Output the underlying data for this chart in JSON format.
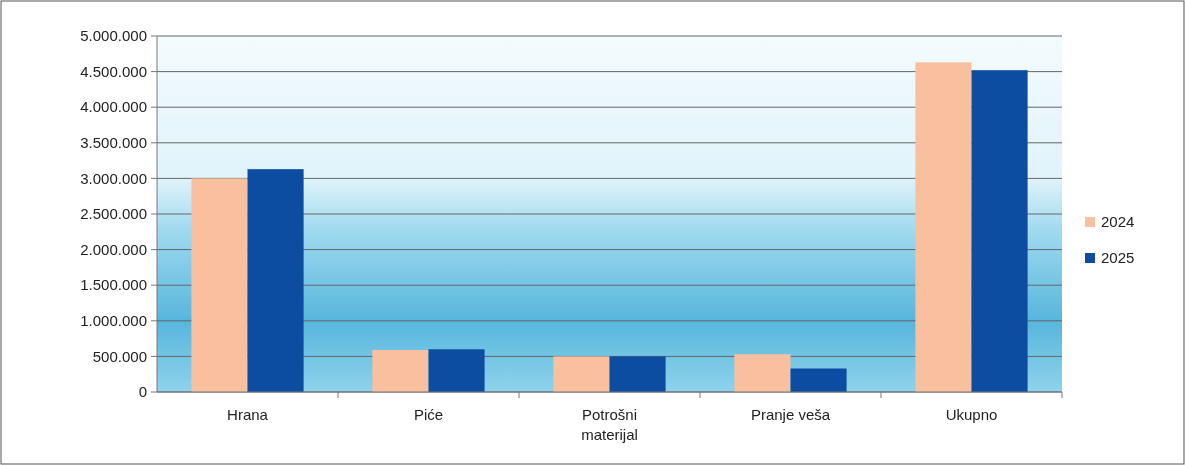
{
  "chart_data": {
    "type": "bar",
    "categories": [
      "Hrana",
      "Piće",
      "Potrošni materijal",
      "Pranje veša",
      "Ukupno"
    ],
    "series": [
      {
        "name": "2024",
        "color": "#f9c0a0",
        "values": [
          3000000,
          590000,
          500000,
          530000,
          4630000
        ]
      },
      {
        "name": "2025",
        "color": "#0c4da2",
        "values": [
          3130000,
          600000,
          500000,
          330000,
          4520000
        ]
      }
    ],
    "ylim": [
      0,
      5000000
    ],
    "yticks": [
      {
        "value": 0,
        "label": "0"
      },
      {
        "value": 500000,
        "label": "500.000"
      },
      {
        "value": 1000000,
        "label": "1.000.000"
      },
      {
        "value": 1500000,
        "label": "1.500.000"
      },
      {
        "value": 2000000,
        "label": "2.000.000"
      },
      {
        "value": 2500000,
        "label": "2.500.000"
      },
      {
        "value": 3000000,
        "label": "3.000.000"
      },
      {
        "value": 3500000,
        "label": "3.500.000"
      },
      {
        "value": 4000000,
        "label": "4.000.000"
      },
      {
        "value": 4500000,
        "label": "4.500.000"
      },
      {
        "value": 5000000,
        "label": "5.000.000"
      }
    ],
    "grid": "y",
    "legend": "right"
  }
}
